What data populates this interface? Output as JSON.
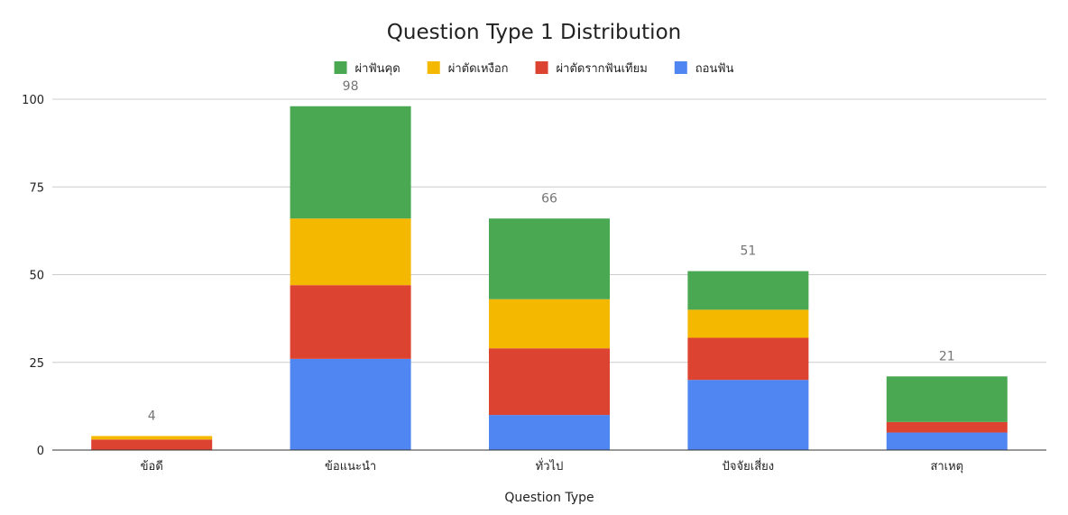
{
  "chart_data": {
    "type": "bar",
    "stacked": true,
    "title": "Question Type 1 Distribution",
    "xlabel": "Question Type",
    "ylabel": "",
    "ylim": [
      0,
      100
    ],
    "yticks": [
      0,
      25,
      50,
      75,
      100
    ],
    "grid": true,
    "legend_position": "top",
    "categories": [
      "ข้อดี",
      "ข้อแนะนำ",
      "ทั่วไป",
      "ปัจจัยเสี่ยง",
      "สาเหตุ"
    ],
    "series": [
      {
        "name": "ถอนฟัน",
        "color": "#4f86f1",
        "values": [
          0,
          26,
          10,
          20,
          5
        ]
      },
      {
        "name": "ผ่าตัดรากฟันเทียม",
        "color": "#dc4330",
        "values": [
          3,
          21,
          19,
          12,
          3
        ]
      },
      {
        "name": "ผ่าตัดเหงือก",
        "color": "#f4b800",
        "values": [
          1,
          19,
          14,
          8,
          0
        ]
      },
      {
        "name": "ผ่าฟันคุด",
        "color": "#4aa853",
        "values": [
          0,
          32,
          23,
          11,
          13
        ]
      }
    ],
    "legend_order": [
      "ผ่าฟันคุด",
      "ผ่าตัดเหงือก",
      "ผ่าตัดรากฟันเทียม",
      "ถอนฟัน"
    ],
    "totals": [
      4,
      98,
      66,
      51,
      21
    ]
  }
}
